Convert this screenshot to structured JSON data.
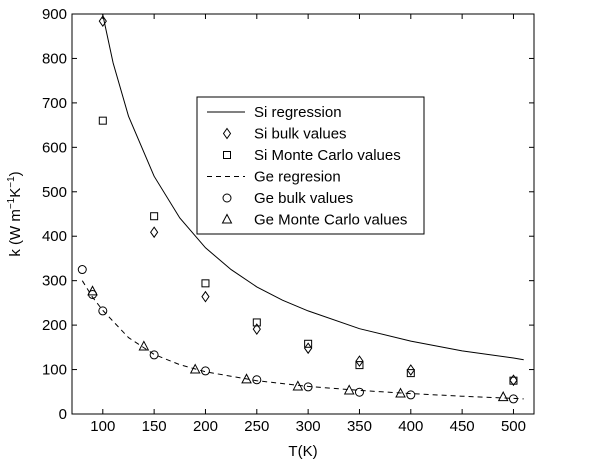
{
  "chart_data": {
    "type": "scatter",
    "title": "",
    "xlabel": "T(K)",
    "ylabel_parts": {
      "prefix": "k (W m",
      "exp1": "−1",
      "mid": "K",
      "exp2": "−1",
      "suffix": ")"
    },
    "xlim": [
      70,
      520
    ],
    "ylim": [
      0,
      900
    ],
    "x_ticks": [
      100,
      150,
      200,
      250,
      300,
      350,
      400,
      450,
      500
    ],
    "y_ticks": [
      0,
      100,
      200,
      300,
      400,
      500,
      600,
      700,
      800,
      900
    ],
    "grid": false,
    "legend_position": "center",
    "series": [
      {
        "name": "Si regression",
        "kind": "line",
        "style": "solid",
        "x": [
          90,
          100,
          110,
          125,
          150,
          175,
          200,
          225,
          250,
          275,
          300,
          350,
          400,
          450,
          500,
          510
        ],
        "y": [
          1035,
          898,
          790,
          670,
          535,
          441,
          374,
          325,
          286,
          256,
          232,
          192,
          164,
          142,
          126,
          122
        ]
      },
      {
        "name": "Si bulk values",
        "kind": "marker",
        "marker": "diamond",
        "x": [
          100,
          150,
          200,
          250,
          300,
          350,
          400,
          500
        ],
        "y": [
          884,
          409,
          264,
          191,
          148,
          119,
          99,
          76
        ]
      },
      {
        "name": "Si Monte Carlo values",
        "kind": "marker",
        "marker": "square",
        "x": [
          100,
          150,
          200,
          250,
          300,
          350,
          400,
          500
        ],
        "y": [
          660,
          445,
          294,
          206,
          158,
          110,
          92,
          75
        ]
      },
      {
        "name": "Ge regresion",
        "kind": "line",
        "style": "dashed",
        "x": [
          80,
          90,
          100,
          125,
          150,
          175,
          200,
          250,
          300,
          350,
          400,
          450,
          500,
          510
        ],
        "y": [
          300,
          263,
          233,
          172,
          134,
          111,
          95,
          75,
          62,
          53,
          46,
          40,
          35,
          34
        ]
      },
      {
        "name": "Ge bulk values",
        "kind": "marker",
        "marker": "circle",
        "x": [
          80,
          90,
          100,
          150,
          200,
          250,
          300,
          350,
          400,
          500
        ],
        "y": [
          325,
          269,
          232,
          133,
          97,
          77,
          61,
          49,
          43,
          34
        ]
      },
      {
        "name": "Ge Monte Carlo values",
        "kind": "marker",
        "marker": "triangle",
        "x": [
          90,
          140,
          190,
          240,
          290,
          340,
          390,
          490
        ],
        "y": [
          276,
          152,
          100,
          78,
          62,
          53,
          46,
          38
        ]
      }
    ]
  }
}
